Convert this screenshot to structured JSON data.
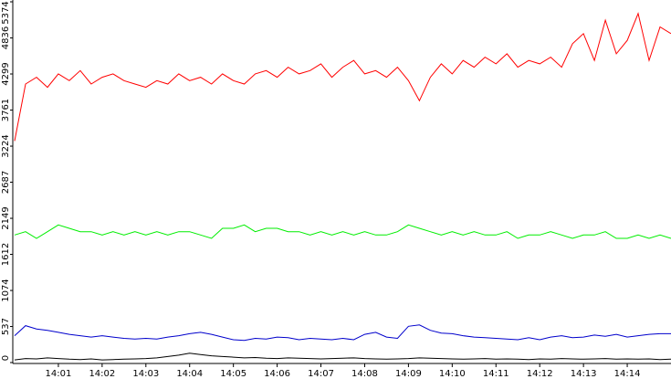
{
  "chart_data": {
    "type": "line",
    "x": [
      0,
      0.25,
      0.5,
      0.75,
      1,
      1.25,
      1.5,
      1.75,
      2,
      2.25,
      2.5,
      2.75,
      3,
      3.25,
      3.5,
      3.75,
      4,
      4.25,
      4.5,
      4.75,
      5,
      5.25,
      5.5,
      5.75,
      6,
      6.25,
      6.5,
      6.75,
      7,
      7.25,
      7.5,
      7.75,
      8,
      8.25,
      8.5,
      8.75,
      9,
      9.25,
      9.5,
      9.75,
      10,
      10.25,
      10.5,
      10.75,
      11,
      11.25,
      11.5,
      11.75,
      12,
      12.25,
      12.5,
      12.75,
      13,
      13.25,
      13.5,
      13.75,
      14,
      14.25,
      14.5,
      14.75,
      15
    ],
    "series": [
      {
        "color": "#ff0000",
        "values": [
          3300,
          4150,
          4250,
          4100,
          4300,
          4200,
          4350,
          4150,
          4250,
          4300,
          4200,
          4150,
          4100,
          4200,
          4150,
          4300,
          4200,
          4250,
          4150,
          4300,
          4200,
          4150,
          4300,
          4350,
          4250,
          4400,
          4300,
          4350,
          4450,
          4250,
          4400,
          4500,
          4300,
          4350,
          4250,
          4400,
          4200,
          3900,
          4250,
          4450,
          4300,
          4500,
          4400,
          4550,
          4450,
          4600,
          4400,
          4500,
          4450,
          4550,
          4400,
          4750,
          4900,
          4500,
          5100,
          4600,
          4800,
          5200,
          4500,
          5000,
          4900
        ]
      },
      {
        "color": "#00ee00",
        "values": [
          1900,
          1950,
          1850,
          1950,
          2050,
          2000,
          1950,
          1950,
          1900,
          1950,
          1900,
          1950,
          1900,
          1950,
          1900,
          1950,
          1950,
          1900,
          1850,
          2000,
          2000,
          2050,
          1950,
          2000,
          2000,
          1950,
          1950,
          1900,
          1950,
          1900,
          1950,
          1900,
          1950,
          1900,
          1900,
          1950,
          2050,
          2000,
          1950,
          1900,
          1950,
          1900,
          1950,
          1900,
          1900,
          1950,
          1850,
          1900,
          1900,
          1950,
          1900,
          1850,
          1900,
          1900,
          1950,
          1850,
          1850,
          1900,
          1850,
          1900,
          1850
        ]
      },
      {
        "color": "#0000cc",
        "values": [
          400,
          550,
          500,
          480,
          450,
          420,
          400,
          380,
          400,
          380,
          360,
          350,
          360,
          350,
          380,
          400,
          430,
          450,
          420,
          380,
          340,
          330,
          360,
          350,
          380,
          370,
          340,
          360,
          350,
          340,
          360,
          340,
          420,
          450,
          380,
          360,
          540,
          560,
          480,
          440,
          430,
          400,
          380,
          370,
          360,
          350,
          340,
          370,
          340,
          380,
          400,
          370,
          380,
          410,
          390,
          420,
          380,
          400,
          420,
          430,
          430
        ]
      },
      {
        "color": "#000000",
        "values": [
          40,
          60,
          55,
          70,
          60,
          50,
          45,
          55,
          40,
          45,
          50,
          55,
          60,
          70,
          90,
          110,
          140,
          120,
          100,
          90,
          80,
          70,
          75,
          65,
          60,
          70,
          65,
          60,
          55,
          60,
          65,
          70,
          60,
          55,
          50,
          55,
          60,
          70,
          65,
          60,
          55,
          50,
          55,
          60,
          50,
          55,
          50,
          45,
          55,
          50,
          60,
          55,
          50,
          55,
          60,
          50,
          55,
          50,
          55,
          45,
          50
        ]
      }
    ],
    "xlim": [
      0,
      15
    ],
    "xticks": [
      {
        "value": 1,
        "label": "14:01"
      },
      {
        "value": 2,
        "label": "14:02"
      },
      {
        "value": 3,
        "label": "14:03"
      },
      {
        "value": 4,
        "label": "14:04"
      },
      {
        "value": 5,
        "label": "14:05"
      },
      {
        "value": 6,
        "label": "14:06"
      },
      {
        "value": 7,
        "label": "14:07"
      },
      {
        "value": 8,
        "label": "14:08"
      },
      {
        "value": 9,
        "label": "14:09"
      },
      {
        "value": 10,
        "label": "14:10"
      },
      {
        "value": 11,
        "label": "14:11"
      },
      {
        "value": 12,
        "label": "14:12"
      },
      {
        "value": 13,
        "label": "14:13"
      },
      {
        "value": 14,
        "label": "14:14"
      }
    ],
    "ylim": [
      0,
      5374
    ],
    "yticks": [
      0,
      537,
      1074,
      1612,
      2149,
      2687,
      3224,
      3761,
      4299,
      4836,
      5374
    ]
  }
}
